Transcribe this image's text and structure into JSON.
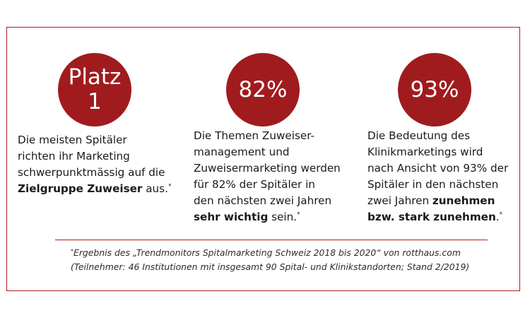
{
  "stats": [
    {
      "headline": "Platz\n1",
      "lines": [
        [
          {
            "t": "Die meisten Spitäler"
          }
        ],
        [
          {
            "t": "richten ihr Marketing"
          }
        ],
        [
          {
            "t": "schwerpunktmässig auf die"
          }
        ],
        [
          {
            "t": "Zielgruppe Zuweiser",
            "b": true
          },
          {
            "t": " aus."
          },
          {
            "t": "*",
            "sup": true
          }
        ]
      ]
    },
    {
      "headline": "82%",
      "lines": [
        [
          {
            "t": "Die Themen Zuweiser-"
          }
        ],
        [
          {
            "t": "management und"
          }
        ],
        [
          {
            "t": "Zuweisermarketing werden"
          }
        ],
        [
          {
            "t": "für 82% der Spitäler in"
          }
        ],
        [
          {
            "t": "den nächsten zwei Jahren"
          }
        ],
        [
          {
            "t": "sehr wichtig",
            "b": true
          },
          {
            "t": " sein."
          },
          {
            "t": "*",
            "sup": true
          }
        ]
      ]
    },
    {
      "headline": "93%",
      "lines": [
        [
          {
            "t": "Die Bedeutung des"
          }
        ],
        [
          {
            "t": "Klinikmarketings wird"
          }
        ],
        [
          {
            "t": "nach Ansicht von 93% der"
          }
        ],
        [
          {
            "t": "Spitäler in den nächsten"
          }
        ],
        [
          {
            "t": "zwei Jahren "
          },
          {
            "t": "zunehmen",
            "b": true
          }
        ],
        [
          {
            "t": "bzw. stark zunehmen",
            "b": true
          },
          {
            "t": "."
          },
          {
            "t": "*",
            "sup": true
          }
        ]
      ]
    }
  ],
  "footnote": {
    "marker": "*",
    "line1": "Ergebnis des „Trendmonitors Spitalmarketing Schweiz 2018 bis 2020“ von rotthaus.com",
    "line2": "(Teilnehmer: 46 Institutionen mit insgesamt 90 Spital- und Klinikstandorten; Stand 2/2019)"
  },
  "colors": {
    "accent": "#a01b1e",
    "border": "#b01c22",
    "text": "#1a1a1a"
  }
}
